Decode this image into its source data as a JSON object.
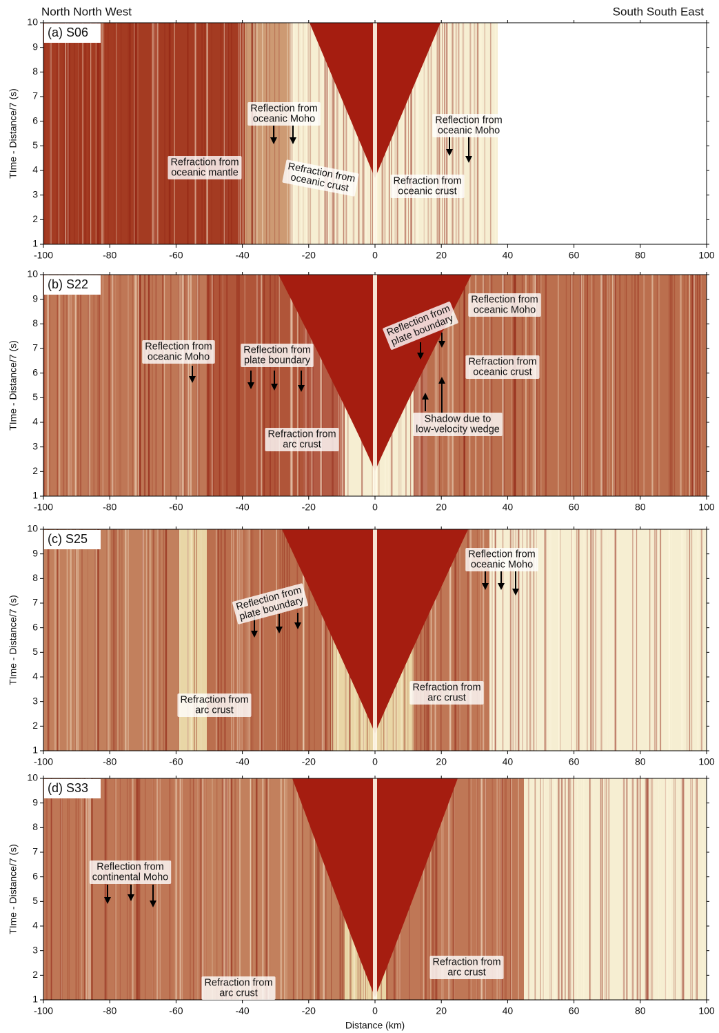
{
  "orientation": {
    "left": "North North West",
    "right": "South South East"
  },
  "chart_data": [
    {
      "type": "seismic",
      "title": "(a) S06",
      "ylabel": "TIme - Distance/7 (s)",
      "xlim": [
        -100,
        100
      ],
      "ylim": [
        1,
        10
      ],
      "xticks": [
        -100,
        -80,
        -60,
        -40,
        -20,
        0,
        20,
        40,
        60,
        80,
        100
      ],
      "yticks": [
        1,
        2,
        3,
        4,
        5,
        6,
        7,
        8,
        9,
        10
      ],
      "annotations": [
        [
          "Reflection from",
          "oceanic Moho"
        ],
        [
          "Reflection from",
          "oceanic Moho"
        ],
        [
          "Refraction from",
          "oceanic mantle"
        ],
        [
          "Refraction from",
          "oceanic crust"
        ],
        [
          "Refraction from",
          "oceanic crust"
        ]
      ]
    },
    {
      "type": "seismic",
      "title": "(b) S22",
      "ylabel": "TIme - Distance/7 (s)",
      "xlim": [
        -100,
        100
      ],
      "ylim": [
        1,
        10
      ],
      "xticks": [
        -100,
        -80,
        -60,
        -40,
        -20,
        0,
        20,
        40,
        60,
        80,
        100
      ],
      "yticks": [
        1,
        2,
        3,
        4,
        5,
        6,
        7,
        8,
        9,
        10
      ],
      "annotations": [
        [
          "Reflection from",
          "oceanic Moho"
        ],
        [
          "Reflection from",
          "plate boundary"
        ],
        [
          "Reflection from",
          "plate boundary"
        ],
        [
          "Reflection from",
          "oceanic Moho"
        ],
        [
          "Refraction from",
          "oceanic crust"
        ],
        [
          "Shadow due to",
          "low-velocity wedge"
        ],
        [
          "Refraction from",
          "arc crust"
        ]
      ]
    },
    {
      "type": "seismic",
      "title": "(c) S25",
      "ylabel": "TIme - Distance/7 (s)",
      "xlim": [
        -100,
        100
      ],
      "ylim": [
        1,
        10
      ],
      "xticks": [
        -100,
        -80,
        -60,
        -40,
        -20,
        0,
        20,
        40,
        60,
        80,
        100
      ],
      "yticks": [
        1,
        2,
        3,
        4,
        5,
        6,
        7,
        8,
        9,
        10
      ],
      "annotations": [
        [
          "Reflection from",
          "oceanic Moho"
        ],
        [
          "Reflection from",
          "plate boundary"
        ],
        [
          "Refraction from",
          "arc crust"
        ],
        [
          "Refraction from",
          "arc crust"
        ]
      ]
    },
    {
      "type": "seismic",
      "title": "(d) S33",
      "ylabel": "TIme - Distance/7 (s)",
      "xlabel": "Distance (km)",
      "xlim": [
        -100,
        100
      ],
      "ylim": [
        1,
        10
      ],
      "xticks": [
        -100,
        -80,
        -60,
        -40,
        -20,
        0,
        20,
        40,
        60,
        80,
        100
      ],
      "yticks": [
        1,
        2,
        3,
        4,
        5,
        6,
        7,
        8,
        9,
        10
      ],
      "annotations": [
        [
          "Reflection from",
          "continental Moho"
        ],
        [
          "Refraction from",
          "arc crust"
        ],
        [
          "Refraction from",
          "arc crust"
        ]
      ]
    }
  ]
}
